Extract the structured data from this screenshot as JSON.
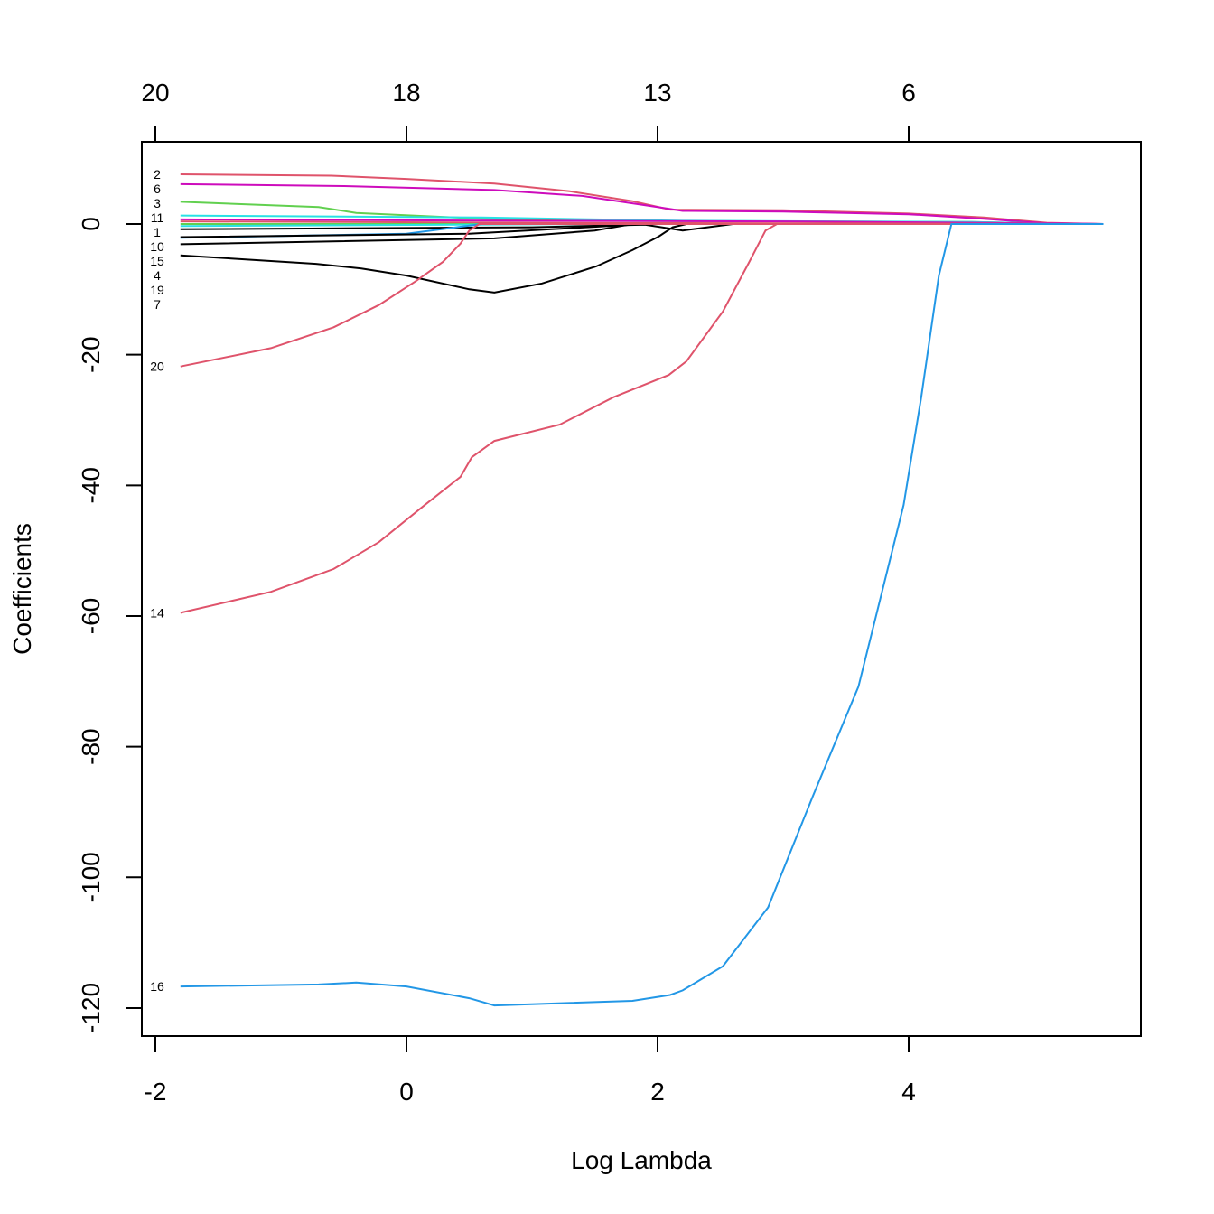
{
  "chart_data": {
    "type": "line",
    "title": "",
    "xlabel": "Log Lambda",
    "ylabel": "Coefficients",
    "xlim": [
      -2.05,
      5.85
    ],
    "ylim": [
      -124.5,
      12.7
    ],
    "grid": false,
    "x_ticks": [
      -2,
      0,
      2,
      4
    ],
    "y_ticks": [
      -120,
      -100,
      -80,
      -60,
      -40,
      -20,
      0
    ],
    "top_axis": {
      "ticks": [
        -2,
        0,
        2,
        4
      ],
      "labels": [
        "20",
        "18",
        "13",
        "6"
      ]
    },
    "series": [
      {
        "name": "2",
        "color": "#DF536B",
        "x": [
          -1.8,
          -0.6,
          0,
          0.7,
          1.3,
          1.8,
          2.1,
          3,
          4,
          4.6,
          5.1,
          5.55
        ],
        "y": [
          7.6,
          7.4,
          6.9,
          6.2,
          5.0,
          3.5,
          2.2,
          2.1,
          1.6,
          1.0,
          0.2,
          0
        ]
      },
      {
        "name": "6",
        "color": "#CD0BBC",
        "x": [
          -1.8,
          -0.5,
          0.7,
          1.4,
          2.0,
          2.2,
          3,
          4,
          4.6,
          5.1,
          5.55
        ],
        "y": [
          6.1,
          5.8,
          5.2,
          4.3,
          2.6,
          2.0,
          1.9,
          1.5,
          0.8,
          0.1,
          0
        ]
      },
      {
        "name": "3",
        "color": "#61D04F",
        "x": [
          -1.8,
          -0.7,
          -0.4,
          0.6,
          1.5,
          4.5,
          5.3,
          5.55
        ],
        "y": [
          3.4,
          2.6,
          1.7,
          0.8,
          0.5,
          0.3,
          0,
          0
        ]
      },
      {
        "name": "11",
        "color": "#28E2E5",
        "x": [
          -1.8,
          0.6,
          2.2,
          4.5,
          5.3,
          5.55
        ],
        "y": [
          1.3,
          1.0,
          0.5,
          0.3,
          0,
          0
        ]
      },
      {
        "name": "1",
        "color": "#CD0BBC",
        "x": [
          -1.8,
          1.0,
          3,
          5.2,
          5.55
        ],
        "y": [
          0.7,
          0.5,
          0.4,
          0.1,
          0
        ]
      },
      {
        "name": "10",
        "color": "#DF536B",
        "x": [
          -1.8,
          1.0,
          3.5,
          5.55
        ],
        "y": [
          0.4,
          0.2,
          0.1,
          0
        ]
      },
      {
        "name": "15",
        "color": "#61D04F",
        "x": [
          -1.8,
          0.5,
          2.5,
          5.55
        ],
        "y": [
          0.0,
          0.0,
          0.0,
          0
        ]
      },
      {
        "name": "",
        "color": "#28E2E5",
        "x": [
          -1.8,
          0.5,
          1.5,
          5.55
        ],
        "y": [
          -0.3,
          -0.1,
          0,
          0
        ]
      },
      {
        "name": "",
        "color": "#000000",
        "x": [
          -1.8,
          1.0,
          1.9,
          2.2,
          2.6,
          5.55
        ],
        "y": [
          -0.8,
          -0.5,
          -0.1,
          -1.0,
          0,
          0
        ]
      },
      {
        "name": "4",
        "color": "#2297E6",
        "x": [
          -1.8,
          0,
          0.6,
          5.55
        ],
        "y": [
          -2.1,
          -1.5,
          0,
          0
        ]
      },
      {
        "name": "",
        "color": "#000000",
        "x": [
          -1.8,
          0.5,
          1.9,
          5.55
        ],
        "y": [
          -2.0,
          -1.5,
          0,
          0
        ]
      },
      {
        "name": "19",
        "color": "#000000",
        "x": [
          -1.8,
          0.7,
          1.5,
          1.8,
          5.55
        ],
        "y": [
          -3.1,
          -2.2,
          -1.0,
          0,
          0
        ]
      },
      {
        "name": "7",
        "color": "#000000",
        "x": [
          -1.8,
          -0.72,
          -0.36,
          0,
          0.5,
          0.7,
          1.08,
          1.51,
          1.8,
          2.01,
          2.12,
          2.23,
          5.55
        ],
        "y": [
          -4.8,
          -6.1,
          -6.8,
          -7.9,
          -10,
          -10.5,
          -9.1,
          -6.5,
          -4,
          -1.9,
          -0.5,
          0,
          0
        ]
      },
      {
        "name": "20",
        "color": "#DF536B",
        "x": [
          -1.8,
          -1.08,
          -0.58,
          -0.22,
          0.07,
          0.29,
          0.43,
          0.5,
          0.58,
          5.55
        ],
        "y": [
          -21.8,
          -19,
          -15.8,
          -12.4,
          -8.8,
          -5.8,
          -3,
          -1,
          0,
          0
        ]
      },
      {
        "name": "14",
        "color": "#DF536B",
        "x": [
          -1.8,
          -1.08,
          -0.58,
          -0.22,
          0.14,
          0.43,
          0.52,
          0.7,
          1.22,
          1.65,
          2.09,
          2.23,
          2.52,
          2.73,
          2.86,
          2.95,
          5.55
        ],
        "y": [
          -59.5,
          -56.3,
          -52.8,
          -48.7,
          -43.1,
          -38.7,
          -35.7,
          -33.2,
          -30.7,
          -26.5,
          -23.1,
          -21,
          -13.4,
          -5.8,
          -1,
          0,
          0
        ]
      },
      {
        "name": "16",
        "color": "#2297E6",
        "x": [
          -1.8,
          -0.7,
          -0.4,
          0,
          0.5,
          0.7,
          1.8,
          2.1,
          2.2,
          2.52,
          2.88,
          3.24,
          3.6,
          3.96,
          4.1,
          4.24,
          4.34,
          5.55
        ],
        "y": [
          -116.7,
          -116.4,
          -116.1,
          -116.7,
          -118.5,
          -119.6,
          -118.9,
          -118,
          -117.3,
          -113.6,
          -104.6,
          -87.4,
          -70.8,
          -43,
          -26.5,
          -7.9,
          0,
          0
        ]
      }
    ]
  }
}
